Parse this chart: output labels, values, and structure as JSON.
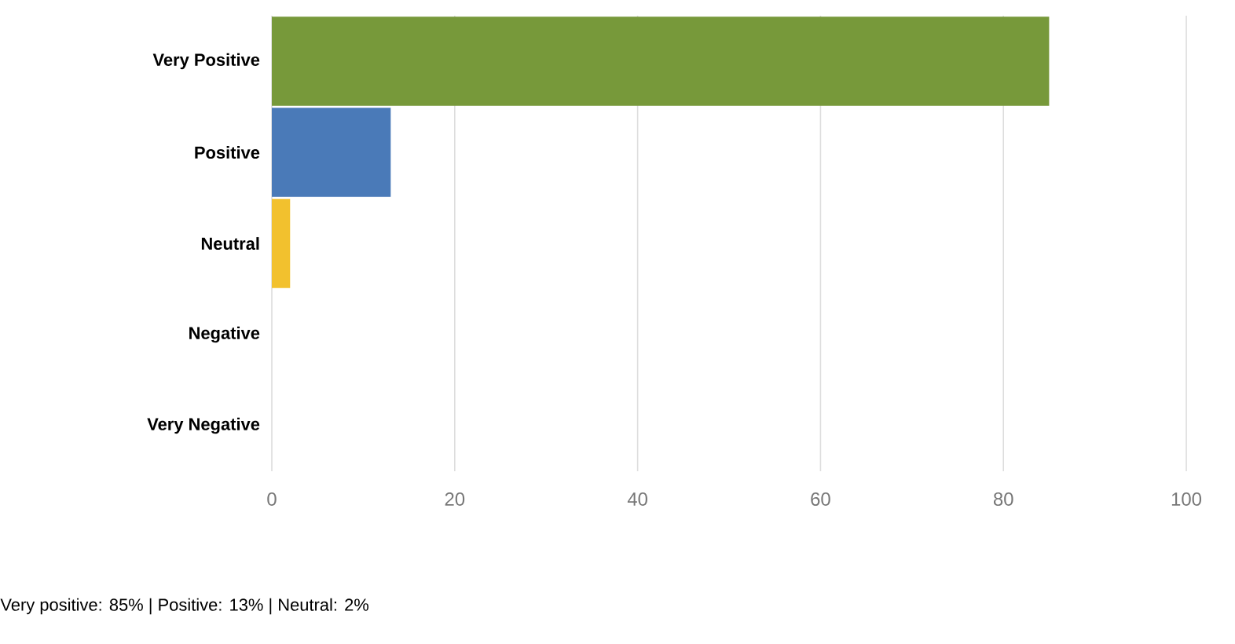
{
  "chart_data": {
    "type": "bar",
    "orientation": "horizontal",
    "categories": [
      "Very Positive",
      "Positive",
      "Neutral",
      "Negative",
      "Very Negative"
    ],
    "values": [
      85,
      13,
      2,
      0,
      0
    ],
    "colors": [
      "#77993a",
      "#4a7ab8",
      "#f2c12e",
      "#cccccc",
      "#cccccc"
    ],
    "xlim": [
      0,
      100
    ],
    "xticks": [
      0,
      20,
      40,
      60,
      80,
      100
    ],
    "grid": "x",
    "annotations": [
      "Very positive: 85% | Positive: 13% | Neutral: 2%"
    ]
  }
}
